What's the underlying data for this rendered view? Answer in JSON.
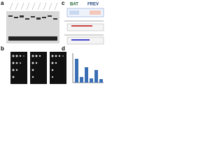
{
  "panels": [
    {
      "label": "a"
    },
    {
      "label": "b"
    },
    {
      "label": "c",
      "titles": [
        "BAT",
        "FREV"
      ]
    },
    {
      "label": "d"
    }
  ]
}
